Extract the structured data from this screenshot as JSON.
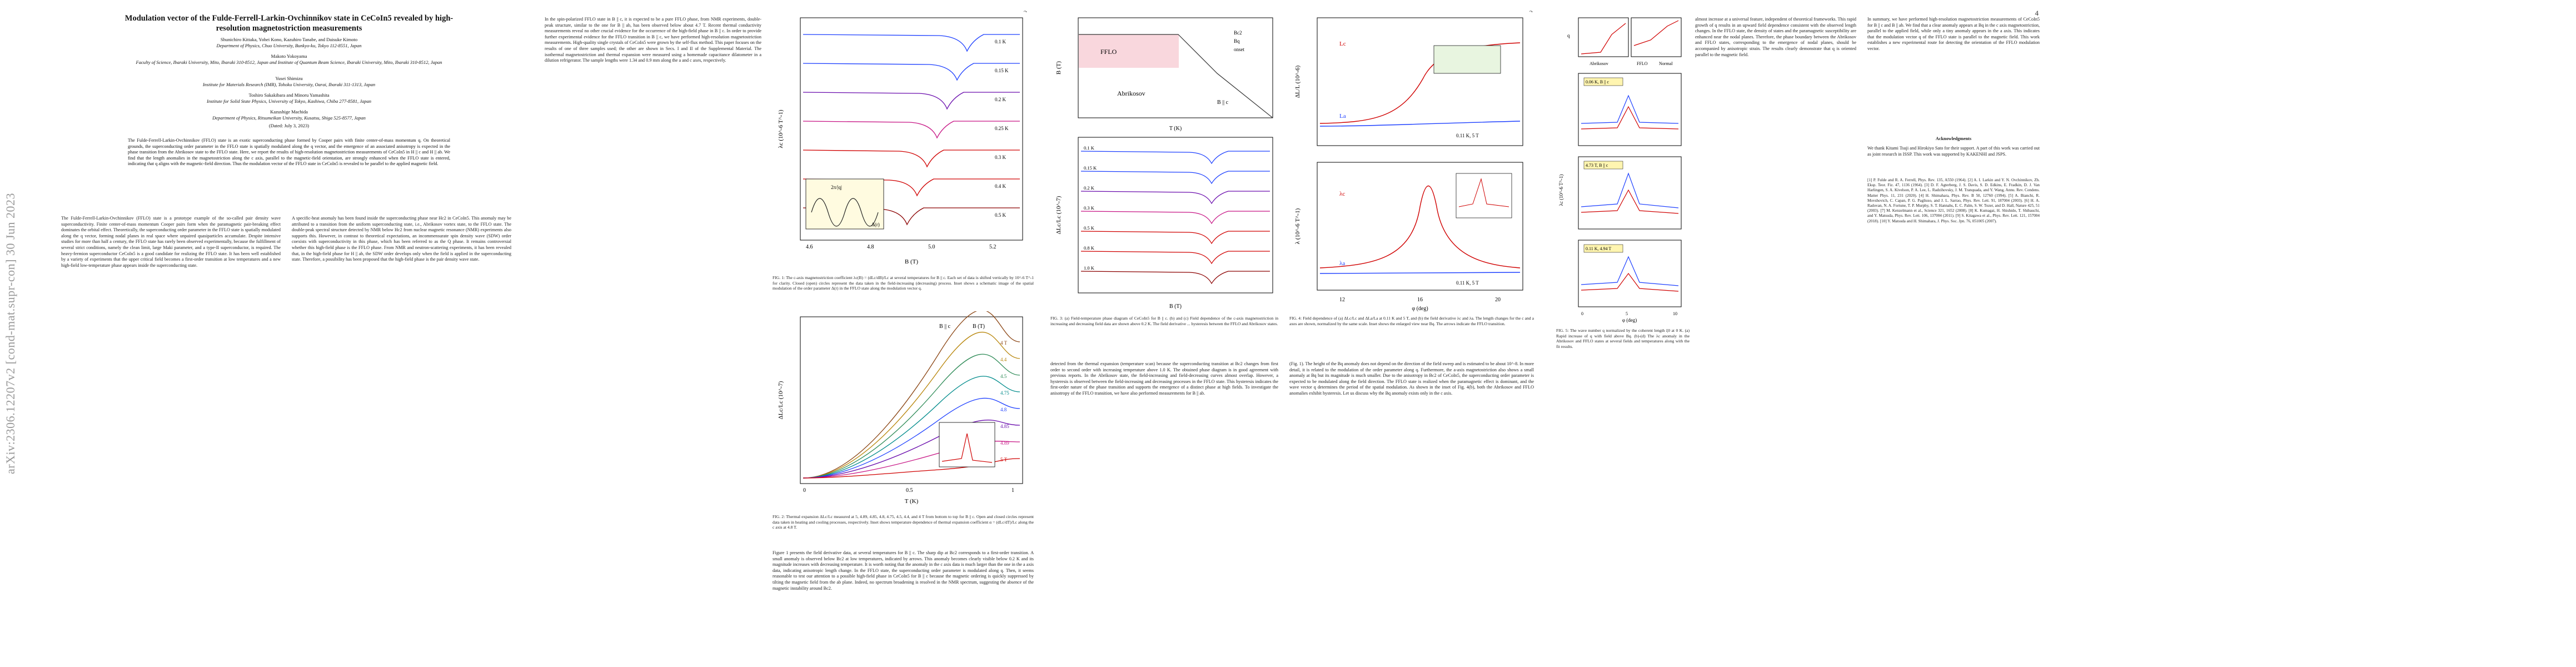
{
  "arxiv_id": "arXiv:2306.12207v2  [cond-mat.supr-con]  30 Jun 2023",
  "page1": {
    "title": "Modulation vector of the Fulde-Ferrell-Larkin-Ovchinnikov state in CeCoIn5 revealed by high-resolution magnetostriction measurements",
    "authors1": "Shunichiro Kittaka, Yohei Kono, Kazuhiro Tanabe, and Daisuke Kimoto",
    "affil1": "Department of Physics, Chuo University, Bunkyo-ku, Tokyo 112-8551, Japan",
    "authors2": "Makoto Yokoyama",
    "affil2": "Faculty of Science, Ibaraki University, Mito, Ibaraki 310-8512, Japan and Institute of Quantum Beam Science, Ibaraki University, Mito, Ibaraki 310-8512, Japan",
    "authors3": "Yusei Shimizu",
    "affil3": "Institute for Materials Research (IMR), Tohoku University, Oarai, Ibaraki 311-1313, Japan",
    "authors4": "Toshiro Sakakibara and Minoru Yamashita",
    "affil4": "Institute for Solid State Physics, University of Tokyo, Kashiwa, Chiba 277-8581, Japan",
    "authors5": "Kazushige Machida",
    "affil5": "Department of Physics, Ritsumeikan University, Kusatsu, Shiga 525-8577, Japan",
    "dated": "(Dated: July 3, 2023)",
    "abstract": "The Fulde-Ferrell-Larkin-Ovchinnikov (FFLO) state is an exotic superconducting phase formed by Cooper pairs with finite center-of-mass momentum q. On theoretical grounds, the superconducting order parameter in the FFLO state is spatially modulated along the q vector, and the emergence of an associated anisotropy is expected in the phase transition from the Abrikosov state to the FFLO state. Here, we report the results of high-resolution magnetostriction measurements of CeCoIn5 in H || c and H || ab. We find that the length anomalies in the magnetostriction along the c axis, parallel to the magnetic-field orientation, are strongly enhanced when the FFLO state is entered, indicating that q aligns with the magnetic-field direction. Thus the modulation vector of the FFLO state in CeCoIn5 is revealed to be parallel to the applied magnetic field.",
    "col_left": "The Fulde-Ferrell-Larkin-Ovchinnikov (FFLO) state is a prototype example of the so-called pair density wave superconductivity. Finite center-of-mass momentum Cooper pairs form when the paramagnetic pair-breaking effect dominates the orbital effect. Theoretically, the superconducting order parameter in the FFLO state is spatially modulated along the q vector, forming nodal planes in real space where unpaired quasiparticles accumulate. Despite intensive studies for more than half a century, the FFLO state has rarely been observed experimentally, because the fulfillment of several strict conditions, namely the clean limit, large Maki parameter, and a type-II superconductor, is required. The heavy-fermion superconductor CeCoIn5 is a good candidate for realizing the FFLO state. It has been well established by a variety of experiments that the upper critical field becomes a first-order transition at low temperatures and a new high-field low-temperature phase appears inside the superconducting state.",
    "col_right": "A specific-heat anomaly has been found inside the superconducting phase near Hc2 in CeCoIn5. This anomaly may be attributed to a transition from the uniform superconducting state, i.e., Abrikosov vortex state, to the FFLO state. The double-peak spectral structure detected by NMR below Hc2 from nuclear magnetic resonance (NMR) experiments also supports this. However, in contrast to theoretical expectations, an incommensurate spin density wave (SDW) order coexists with superconductivity in this phase, which has been referred to as the Q phase. It remains controversial whether this high-field phase is the FFLO phase. From NMR and neutron-scattering experiments, it has been revealed that, in the high-field phase for H || ab, the SDW order develops only when the field is applied in the superconducting state. Therefore, a possibility has been proposed that the high-field phase is the pair density wave state."
  },
  "page2": {
    "page_number": "2",
    "col_left": "In the spin-polarized FFLO state in B || c, it is expected to be a pure FFLO phase, from NMR experiments, double-peak structure, similar to the one for B || ab, has been observed below about 4.7 T. Recent thermal conductivity measurements reveal no other crucial evidence for the occurrence of the high-field phase in B || c. In order to provide further experimental evidence for the FFLO transition in B || c, we have performed high-resolution magnetostriction measurements. High-quality single crystals of CeCoIn5 were grown by the self-flux method. This paper focuses on the results of one of three samples used; the other are shown in Secs. I and II of the Supplemental Material. The isothermal magnetostriction and thermal expansion were measured using a homemade capacitance dilatometer in a dilution refrigerator. The sample lengths were 1.34 and 0.9 mm along the a and c axes, respectively.",
    "col_right": "Figure 1 presents the field derivative data, at several temperatures for B || c. The sharp dip at Bc2 corresponds to a first-order transition. A small anomaly is observed below Bc2 at low temperatures, indicated by arrows. This anomaly becomes clearly visible below 0.2 K and its magnitude increases with decreasing temperature. It is worth noting that the anomaly in the c axis data is much larger than the one in the a axis data, indicating anisotropic length change. In the FFLO state, the superconducting order parameter is modulated along q. Then, it seems reasonable to test our attention to a possible high-field phase in CeCoIn5 for B || c because the magnetic ordering is quickly suppressed by tilting the magnetic field from the ab plane. Indeed, no spectrum broadening is resolved in the NMR spectrum, suggesting the absence of the magnetic instability around Bc2."
  },
  "page3": {
    "page_number": "3",
    "col_left": "detected from the thermal expansion (temperature scan) because the superconducting transition at Bc2 changes from first order to second order with increasing temperature above 1.0 K. The obtained phase diagram is in good agreement with previous reports. In the Abrikosov state, the field-increasing and field-decreasing curves almost overlap. However, a hysteresis is observed between the field-increasing and decreasing processes in the FFLO state. This hysteresis indicates the first-order nature of the phase transition and supports the emergence of a distinct phase at high fields. To investigate the anisotropy of the FFLO transition, we have also performed measurements for B || ab.",
    "col_right": "(Fig. 1). The height of the Bq anomaly does not depend on the direction of the field sweep and is estimated to be about 10^-8. In more detail, it is related to the modulation of the order parameter along q. Furthermore, the a-axis magnetostriction also shows a small anomaly at Bq but its magnitude is much smaller. Due to the anisotropy in Bc2 of CeCoIn5, the superconducting order parameter is expected to be modulated along the field direction. The FFLO state is realized when the paramagnetic effect is dominant, and the wave vector q determines the period of the spatial modulation. As shown in the inset of Fig. 4(b), both the Abrikosov and FFLO anomalies exhibit hysteresis. Let us discuss why the Bq anomaly exists only in the c axis."
  },
  "page4": {
    "page_number": "4",
    "col_left": "almost increase at a universal feature, independent of theoretical frameworks. This rapid growth of q results in an upward field dependence consistent with the observed length changes. In the FFLO state, the density of states and the paramagnetic susceptibility are enhanced near the nodal planes. Therefore, the phase boundary between the Abrikosov and FFLO states, corresponding to the emergence of nodal planes, should be accompanied by anisotropic strain. The results clearly demonstrate that q is oriented parallel to the magnetic field.",
    "col_right": "In summary, we have performed high-resolution magnetostriction measurements of CeCoIn5 for B || c and B || ab. We find that a clear anomaly appears at Bq in the c axis magnetostriction, parallel to the applied field, while only a tiny anomaly appears in the a axis. This indicates that the modulation vector q of the FFLO state is parallel to the magnetic field. This work establishes a new experimental route for detecting the orientation of the FFLO modulation vector.",
    "ack_head": "Acknowledgments",
    "ack": "We thank Kitami Tsuji and Hirokiyo Sato for their support. A part of this work was carried out as joint research in ISSP. This work was supported by KAKENHI and JSPS.",
    "refs": "[1] P. Fulde and R. A. Ferrell, Phys. Rev. 135, A550 (1964). [2] A. I. Larkin and Y. N. Ovchinnikov, Zh. Eksp. Teor. Fiz. 47, 1136 (1964). [3] D. F. Agterberg, J. S. Davis, S. D. Edkins, E. Fradkin, D. J. Van Harlingen, S. A. Kivelson, P. A. Lee, L. Radzihovsky, J. M. Tranquada, and Y. Wang, Annu. Rev. Condens. Matter Phys. 11, 231 (2020). [4] H. Shimahara, Phys. Rev. B 50, 12760 (1994). [5] A. Bianchi, R. Movshovich, C. Capan, P. G. Pagliuso, and J. L. Sarrao, Phys. Rev. Lett. 91, 187004 (2003). [6] H. A. Radovan, N. A. Fortune, T. P. Murphy, S. T. Hannahs, E. C. Palm, S. W. Tozer, and D. Hall, Nature 425, 51 (2003). [7] M. Kenzelmann et al., Science 321, 1652 (2008). [8] K. Kumagai, H. Shishido, T. Shibauchi, and Y. Matsuda, Phys. Rev. Lett. 106, 137004 (2011). [9] S. Kitagawa et al., Phys. Rev. Lett. 121, 157004 (2018). [10] Y. Matsuda and H. Shimahara, J. Phys. Soc. Jpn. 76, 051005 (2007)."
  },
  "figures": {
    "fig1": {
      "caption": "FIG. 1: The c-axis magnetostriction coefficient λc(B) = (dLc/dB)/Lc at several temperatures for B || c. Each set of data is shifted vertically by 10^-6 T^-1 for clarity. Closed (open) circles represent the data taken in the field-increasing (decreasing) process. Inset shows a schematic image of the spatial modulation of the order parameter Δ(r) in the FFLO state along the modulation vector q.",
      "ylabel": "λc (10^-6 T^-1)",
      "xlabel": "B (T)",
      "temps": [
        "0.1 K",
        "0.15 K",
        "0.2 K",
        "0.25 K",
        "0.3 K",
        "0.4 K",
        "0.5 K"
      ],
      "xticks": [
        "4.6",
        "4.8",
        "5.0",
        "5.2"
      ],
      "inset_label": "2π/|q|",
      "inset_symbol": "Δ(r)"
    },
    "fig2": {
      "caption": "FIG. 2: Thermal expansion ΔLc/Lc measured at 5, 4.89, 4.85, 4.8, 4.75, 4.5, 4.4, and 4 T from bottom to top for B || c. Open and closed circles represent data taken in heating and cooling processes, respectively. Inset shows temperature dependence of thermal expansion coefficient α = (dLc/dT)/Lc along the c axis at 4.8 T.",
      "labels_top": [
        "B || c",
        "B (T)",
        "4 T",
        "4.4",
        "4.5",
        "4.75",
        "4.8",
        "4.85",
        "4.89",
        "5 T"
      ],
      "ylabel": "ΔLc/Lc (10^-7)",
      "xlabel": "T (K)",
      "xticks": [
        "0",
        "0.5",
        "1"
      ]
    },
    "fig3": {
      "caption": "FIG. 3: (a) Field-temperature phase diagram of CeCoIn5 for B || c. (b) and (c) Field dependence of the c-axis magnetostriction in increasing and decreasing field data are shown above 0.2 K. The field derivative ... hysteresis between the FFLO and Abrikosov states.",
      "panel_a": {
        "ylabel": "B (T)",
        "xlabel": "T (K)",
        "label_fflo": "FFLO",
        "label_abr": "Abrikosov",
        "label_field": "B || c",
        "legend": [
          "Bc2",
          "Bq",
          "onset"
        ],
        "yticks": [
          "4.5",
          "4.6",
          "4.7",
          "4.8",
          "4.9",
          "5.0"
        ],
        "xticks": [
          "0",
          "0.2",
          "0.4",
          "0.6",
          "0.8",
          "1.0"
        ]
      },
      "panel_b": {
        "ylabel": "ΔLc/Lc (10^-7)",
        "temps": [
          "0.1 K",
          "0.15 K",
          "0.2 K",
          "0.3 K",
          "0.5 K",
          "0.8 K",
          "1.0 K"
        ],
        "xlabel": "B (T)",
        "xticks": [
          "4.6",
          "4.7",
          "4.8",
          "4.9",
          "5.0",
          "5.1"
        ]
      }
    },
    "fig4": {
      "caption": "FIG. 4: Field dependence of (a) ΔLc/Lc and ΔLa/La at 0.11 K and 5 T, and (b) the field derivative λc and λa. The length changes for the c and a axes are shown, normalized by the same scale. Inset shows the enlarged view near Bq. The arrows indicate the FFLO transition.",
      "panel_a": {
        "ylabel": "ΔL/L (10^-6)",
        "labels": [
          "Lc",
          "La"
        ],
        "annot": "0.11 K, 5 T",
        "xticks": [
          "12",
          "16",
          "20"
        ],
        "xlabel": "φ (deg)"
      },
      "panel_b": {
        "ylabel": "λ (10^-6 T^-1)",
        "labels": [
          "λc",
          "λa"
        ],
        "annot": "0.11 K, 5 T",
        "xticks": [
          "12",
          "16",
          "20"
        ],
        "xlabel": "φ (deg)"
      }
    },
    "fig5": {
      "caption": "FIG. 5: The wave number q normalized by the coherent length ξ0 at 0 K. (a) Rapid increase of q with field above Bq. (b)-(d) The λc anomaly in the Abrikosov and FFLO states at several fields and temperatures along with the fit results.",
      "panel_a": {
        "ylabel": "q",
        "labels": [
          "Abrikosov",
          "FFLO",
          "Normal"
        ],
        "xticks": [
          "0.95",
          "1"
        ]
      },
      "panels": [
        {
          "label": "0.06 K, B || c",
          "ylabel": "λc (10^-6 T^-1)"
        },
        {
          "label": "4.73 T, B || c",
          "ylabel": "λc (10^-6 T^-1)"
        },
        {
          "label": "0.11 K, 4.94 T",
          "ylabel": "λc (10^-6 T^-1)"
        }
      ],
      "xlabel": "φ (deg)",
      "xticks": [
        "0",
        "5",
        "10"
      ]
    }
  }
}
